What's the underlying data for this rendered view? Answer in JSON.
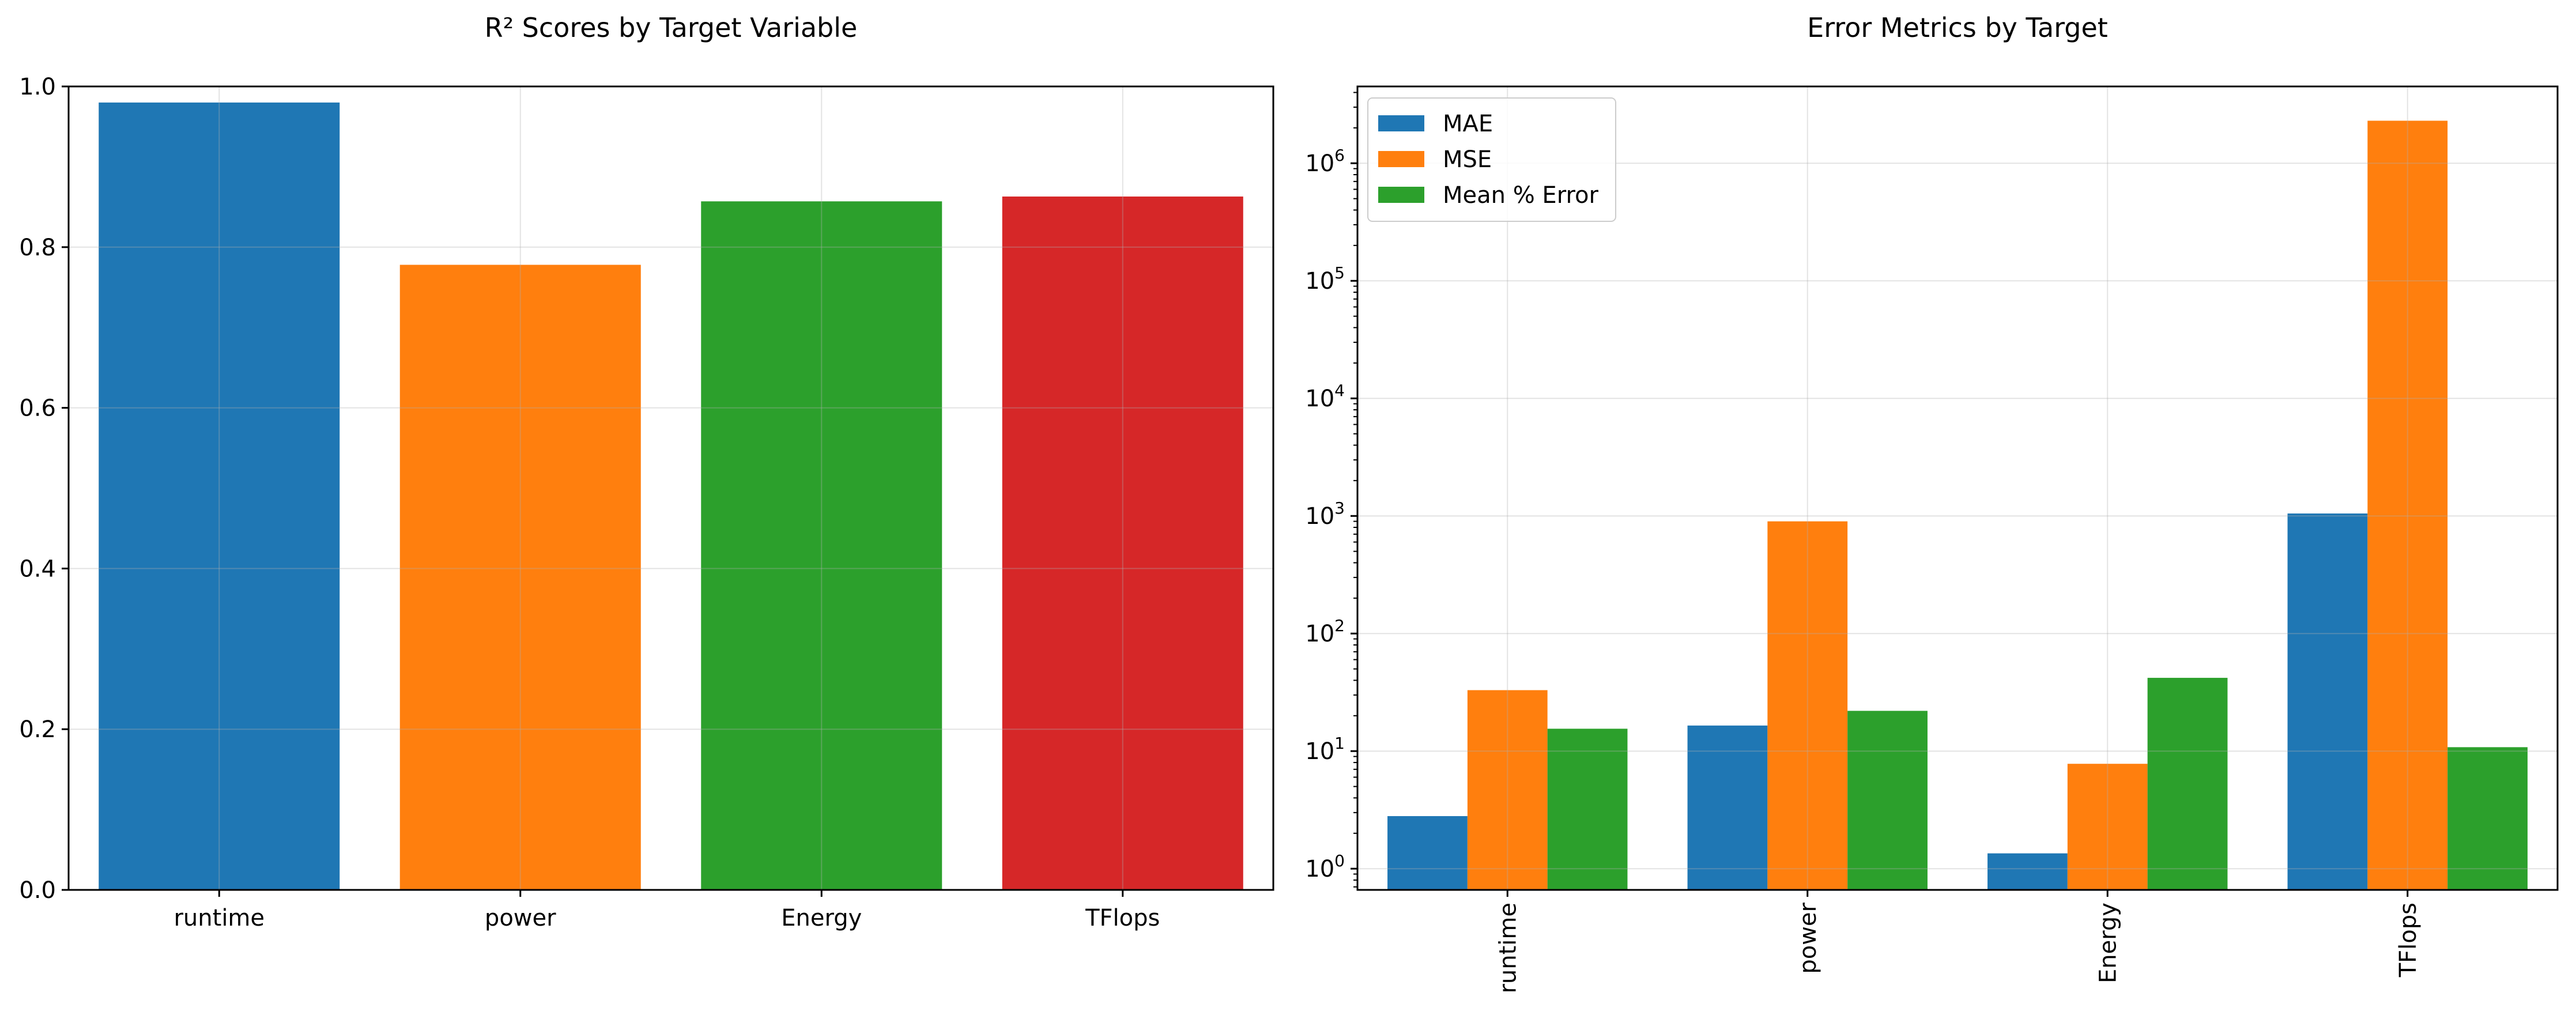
{
  "chart_data": [
    {
      "type": "bar",
      "title": "R² Scores by Target Variable",
      "xlabel": "",
      "ylabel": "",
      "categories": [
        "runtime",
        "power",
        "Energy",
        "TFlops"
      ],
      "values": [
        0.98,
        0.778,
        0.857,
        0.863
      ],
      "colors": [
        "#1f77b4",
        "#ff7f0e",
        "#2ca02c",
        "#d62728"
      ],
      "ylim": [
        0,
        1.0
      ],
      "yticks": [
        0.0,
        0.2,
        0.4,
        0.6,
        0.8,
        1.0
      ],
      "ytick_labels": [
        "0.0",
        "0.2",
        "0.4",
        "0.6",
        "0.8",
        "1.0"
      ],
      "grid": true
    },
    {
      "type": "bar",
      "title": "Error Metrics by Target",
      "xlabel": "",
      "ylabel": "",
      "yscale": "log",
      "categories": [
        "runtime",
        "power",
        "Energy",
        "TFlops"
      ],
      "series": [
        {
          "name": "MAE",
          "color": "#1f77b4",
          "values": [
            2.8,
            16.5,
            1.35,
            1050
          ]
        },
        {
          "name": "MSE",
          "color": "#ff7f0e",
          "values": [
            33,
            900,
            7.8,
            2300000
          ]
        },
        {
          "name": "Mean % Error",
          "color": "#2ca02c",
          "values": [
            15.5,
            22,
            42,
            10.8
          ]
        }
      ],
      "ylim": [
        0.66,
        4500000
      ],
      "ytick_labels": [
        {
          "base": "10",
          "exp": "0"
        },
        {
          "base": "10",
          "exp": "1"
        },
        {
          "base": "10",
          "exp": "2"
        },
        {
          "base": "10",
          "exp": "3"
        },
        {
          "base": "10",
          "exp": "4"
        },
        {
          "base": "10",
          "exp": "5"
        },
        {
          "base": "10",
          "exp": "6"
        }
      ],
      "legend": "upper left",
      "xtick_rotation": "vertical",
      "grid": true
    }
  ]
}
